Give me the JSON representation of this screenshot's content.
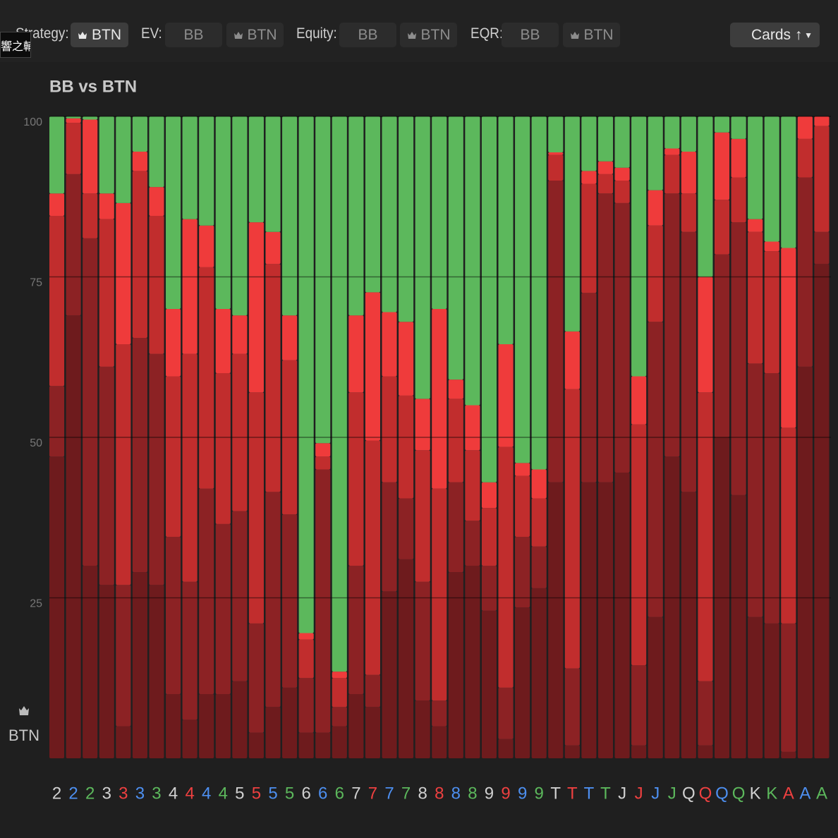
{
  "header": {
    "overlay": "響之輔",
    "strategy_label": "Strategy:",
    "strategy_button": "BTN",
    "ev_label": "EV:",
    "ev_buttons": [
      "BB",
      "BTN"
    ],
    "equity_label": "Equity:",
    "equity_buttons": [
      "BB",
      "BTN"
    ],
    "eqr_label": "EQR:",
    "eqr_buttons": [
      "BB",
      "BTN"
    ],
    "sort_button": "Cards ↑"
  },
  "chart_data": {
    "type": "stacked_bar",
    "title": "BB vs BTN",
    "player_label": "BTN",
    "categories": [
      "2",
      "2",
      "2",
      "3",
      "3",
      "3",
      "3",
      "4",
      "4",
      "4",
      "4",
      "5",
      "5",
      "5",
      "5",
      "6",
      "6",
      "6",
      "7",
      "7",
      "7",
      "7",
      "8",
      "8",
      "8",
      "8",
      "9",
      "9",
      "9",
      "9",
      "T",
      "T",
      "T",
      "T",
      "J",
      "J",
      "J",
      "J",
      "Q",
      "Q",
      "Q",
      "Q",
      "K",
      "K",
      "A",
      "A",
      "A"
    ],
    "category_colors": [
      "#d0d0d0",
      "#4d8ff0",
      "#5cb85c",
      "#d0d0d0",
      "#ee4040",
      "#4d8ff0",
      "#5cb85c",
      "#d0d0d0",
      "#ee4040",
      "#4d8ff0",
      "#5cb85c",
      "#d0d0d0",
      "#ee4040",
      "#4d8ff0",
      "#5cb85c",
      "#d0d0d0",
      "#4d8ff0",
      "#5cb85c",
      "#d0d0d0",
      "#ee4040",
      "#4d8ff0",
      "#5cb85c",
      "#d0d0d0",
      "#ee4040",
      "#4d8ff0",
      "#5cb85c",
      "#d0d0d0",
      "#ee4040",
      "#4d8ff0",
      "#5cb85c",
      "#d0d0d0",
      "#ee4040",
      "#4d8ff0",
      "#5cb85c",
      "#d0d0d0",
      "#ee4040",
      "#4d8ff0",
      "#5cb85c",
      "#d0d0d0",
      "#ee4040",
      "#4d8ff0",
      "#5cb85c",
      "#d0d0d0",
      "#5cb85c",
      "#ee4040",
      "#4d8ff0",
      "#5cb85c"
    ],
    "series": [
      {
        "color": "#6e1b1d",
        "values": [
          47,
          69,
          30,
          27,
          5,
          29,
          27,
          10,
          6,
          10,
          10,
          12,
          4,
          8,
          11,
          4,
          4,
          5,
          10,
          8,
          26,
          31,
          9,
          5,
          29,
          30,
          23,
          3,
          23.5,
          26.5,
          43,
          2,
          43,
          43,
          44.5,
          2,
          22,
          47,
          41.5,
          2,
          50,
          41,
          22,
          21,
          1,
          61,
          77
        ]
      },
      {
        "color": "#8c2224",
        "values": [
          11,
          22,
          51,
          34,
          22,
          36.5,
          36,
          24.5,
          21.5,
          32,
          26.5,
          26.5,
          17,
          33.5,
          27,
          8.5,
          41,
          3,
          20,
          5,
          17,
          9.5,
          18.5,
          4,
          14,
          7,
          7,
          8,
          11,
          6.5,
          47,
          12,
          29.5,
          45,
          42,
          12.5,
          46,
          41,
          40.5,
          10,
          28.5,
          42.5,
          39.5,
          39,
          20,
          29.5,
          5
        ]
      },
      {
        "color": "#c12d2d",
        "values": [
          26.5,
          8,
          7,
          23,
          37.5,
          26,
          21.5,
          25,
          35.5,
          34.5,
          23.5,
          24.5,
          36,
          35.5,
          24,
          6,
          2,
          4.5,
          27,
          36.5,
          16.5,
          16,
          20.5,
          33,
          13,
          11,
          9,
          37.5,
          9.5,
          7.5,
          4,
          43.5,
          17,
          3,
          3.5,
          37.5,
          15,
          6,
          6,
          45,
          8.5,
          7,
          20.5,
          19,
          30.5,
          6,
          16.5
        ]
      },
      {
        "color": "#ef3b3b",
        "values": [
          3.5,
          0.7,
          11.5,
          4,
          22,
          3,
          4.5,
          10.5,
          21,
          6.5,
          10,
          6,
          26.5,
          5,
          7,
          1,
          2.1,
          1,
          12,
          23.1,
          10,
          11.5,
          8,
          28,
          3,
          7,
          4,
          16,
          2,
          4.5,
          0.4,
          9,
          2,
          2,
          2,
          7.5,
          5.5,
          1,
          6.5,
          18,
          10.5,
          6,
          2,
          1.5,
          28,
          3.5,
          1.5
        ]
      },
      {
        "color": "#5cb85c",
        "values": [
          12,
          0.3,
          0.5,
          12,
          13.5,
          5.5,
          11,
          30,
          16,
          17,
          30,
          31,
          16.5,
          18,
          31,
          80.5,
          50.9,
          86.5,
          31,
          27.4,
          30.5,
          32,
          44,
          30,
          41,
          45,
          57,
          35.5,
          54,
          55,
          5.6,
          33.5,
          8.5,
          7,
          8,
          40.5,
          11.5,
          5,
          5.5,
          25,
          2.5,
          3.5,
          16,
          19.5,
          20.5,
          0,
          0
        ]
      }
    ],
    "ylim": [
      0,
      100
    ],
    "yticks": [
      25,
      50,
      75,
      100
    ],
    "grid": true
  }
}
